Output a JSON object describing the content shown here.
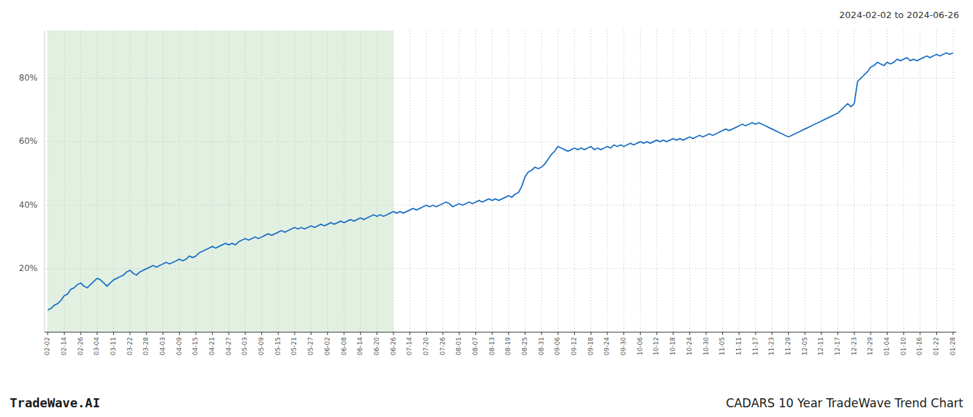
{
  "chart_data": {
    "type": "line",
    "title": "CADARS 10 Year TradeWave Trend Chart",
    "subtitle": "2024-02-02 to 2024-06-26",
    "annotations": [
      "TradeWave.AI"
    ],
    "color": "#1a6fc4",
    "grid": true,
    "ylim": [
      0,
      95
    ],
    "yticks": [
      {
        "value": 20,
        "label": "20%"
      },
      {
        "value": 40,
        "label": "40%"
      },
      {
        "value": 60,
        "label": "60%"
      },
      {
        "value": 80,
        "label": "80%"
      }
    ],
    "shaded_region": {
      "from": "02-02",
      "to": "06-26",
      "color": "#d6ead6"
    },
    "categories": [
      "02-02",
      null,
      null,
      null,
      null,
      "02-14",
      null,
      null,
      null,
      null,
      "02-26",
      null,
      null,
      null,
      null,
      "03-04",
      null,
      null,
      null,
      null,
      "03-11",
      null,
      null,
      null,
      null,
      "03-22",
      null,
      null,
      null,
      null,
      "03-28",
      null,
      null,
      null,
      null,
      "04-03",
      null,
      null,
      null,
      null,
      "04-09",
      null,
      null,
      null,
      null,
      "04-15",
      null,
      null,
      null,
      null,
      "04-21",
      null,
      null,
      null,
      null,
      "04-27",
      null,
      null,
      null,
      null,
      "05-03",
      null,
      null,
      null,
      null,
      "05-09",
      null,
      null,
      null,
      null,
      "05-15",
      null,
      null,
      null,
      null,
      "05-21",
      null,
      null,
      null,
      null,
      "05-27",
      null,
      null,
      null,
      null,
      "06-02",
      null,
      null,
      null,
      null,
      "06-08",
      null,
      null,
      null,
      null,
      "06-14",
      null,
      null,
      null,
      null,
      "06-20",
      null,
      null,
      null,
      null,
      "06-26",
      null,
      null,
      null,
      null,
      "07-14",
      null,
      null,
      null,
      null,
      "07-20",
      null,
      null,
      null,
      null,
      "07-26",
      null,
      null,
      null,
      null,
      "08-01",
      null,
      null,
      null,
      null,
      "08-07",
      null,
      null,
      null,
      null,
      "08-13",
      null,
      null,
      null,
      null,
      "08-19",
      null,
      null,
      null,
      null,
      "08-25",
      null,
      null,
      null,
      null,
      "08-31",
      null,
      null,
      null,
      null,
      "09-06",
      null,
      null,
      null,
      null,
      "09-12",
      null,
      null,
      null,
      null,
      "09-18",
      null,
      null,
      null,
      null,
      "09-24",
      null,
      null,
      null,
      null,
      "09-30",
      null,
      null,
      null,
      null,
      "10-06",
      null,
      null,
      null,
      null,
      "10-12",
      null,
      null,
      null,
      null,
      "10-18",
      null,
      null,
      null,
      null,
      "10-24",
      null,
      null,
      null,
      null,
      "10-30",
      null,
      null,
      null,
      null,
      "11-05",
      null,
      null,
      null,
      null,
      "11-11",
      null,
      null,
      null,
      null,
      "11-17",
      null,
      null,
      null,
      null,
      "11-23",
      null,
      null,
      null,
      null,
      "11-29",
      null,
      null,
      null,
      null,
      "12-05",
      null,
      null,
      null,
      null,
      "12-11",
      null,
      null,
      null,
      null,
      "12-17",
      null,
      null,
      null,
      null,
      "12-23",
      null,
      null,
      null,
      null,
      "12-29",
      null,
      null,
      null,
      null,
      "01-04",
      null,
      null,
      null,
      null,
      "01-10",
      null,
      null,
      null,
      null,
      "01-16",
      null,
      null,
      null,
      null,
      "01-22",
      null,
      null,
      null,
      null,
      "01-28"
    ],
    "values": [
      7.0,
      7.5,
      8.5,
      9.0,
      10.0,
      11.5,
      12.0,
      13.5,
      14.0,
      15.0,
      15.5,
      14.5,
      14.0,
      15.0,
      16.0,
      17.0,
      16.5,
      15.5,
      14.5,
      15.5,
      16.5,
      17.0,
      17.5,
      18.0,
      19.0,
      19.5,
      18.5,
      18.0,
      19.0,
      19.5,
      20.0,
      20.5,
      21.0,
      20.5,
      21.0,
      21.5,
      22.0,
      21.5,
      22.0,
      22.5,
      23.0,
      22.5,
      23.0,
      24.0,
      23.5,
      24.0,
      25.0,
      25.5,
      26.0,
      26.5,
      27.0,
      26.5,
      27.0,
      27.5,
      28.0,
      27.5,
      28.0,
      27.5,
      28.5,
      29.0,
      29.5,
      29.0,
      29.5,
      30.0,
      29.5,
      30.0,
      30.5,
      31.0,
      30.5,
      31.0,
      31.5,
      32.0,
      31.5,
      32.0,
      32.5,
      33.0,
      32.5,
      33.0,
      32.5,
      33.0,
      33.5,
      33.0,
      33.5,
      34.0,
      33.5,
      34.0,
      34.5,
      34.0,
      34.5,
      35.0,
      34.5,
      35.0,
      35.5,
      35.0,
      35.5,
      36.0,
      35.5,
      36.0,
      36.5,
      37.0,
      36.5,
      37.0,
      36.5,
      37.0,
      37.5,
      38.0,
      37.5,
      38.0,
      37.5,
      38.0,
      38.5,
      39.0,
      38.5,
      39.0,
      39.5,
      40.0,
      39.5,
      40.0,
      39.5,
      40.0,
      40.5,
      41.0,
      40.5,
      39.5,
      40.0,
      40.5,
      40.0,
      40.5,
      41.0,
      40.5,
      41.0,
      41.5,
      41.0,
      41.5,
      42.0,
      41.5,
      42.0,
      41.5,
      42.0,
      42.5,
      43.0,
      42.5,
      43.5,
      44.0,
      46.0,
      49.0,
      50.5,
      51.0,
      52.0,
      51.5,
      52.0,
      53.0,
      54.5,
      56.0,
      57.0,
      58.5,
      58.0,
      57.5,
      57.0,
      57.5,
      58.0,
      57.5,
      58.0,
      57.5,
      58.0,
      58.5,
      57.5,
      58.0,
      57.5,
      58.0,
      58.5,
      58.0,
      59.0,
      58.5,
      59.0,
      58.5,
      59.0,
      59.5,
      59.0,
      59.5,
      60.0,
      59.5,
      60.0,
      59.5,
      60.0,
      60.5,
      60.0,
      60.5,
      60.0,
      60.5,
      61.0,
      60.5,
      61.0,
      60.5,
      61.0,
      61.5,
      61.0,
      61.5,
      62.0,
      61.5,
      62.0,
      62.5,
      62.0,
      62.5,
      63.0,
      63.5,
      64.0,
      63.5,
      64.0,
      64.5,
      65.0,
      65.5,
      65.0,
      65.5,
      66.0,
      65.5,
      66.0,
      65.5,
      65.0,
      64.5,
      64.0,
      63.5,
      63.0,
      62.5,
      62.0,
      61.5,
      62.0,
      62.5,
      63.0,
      63.5,
      64.0,
      64.5,
      65.0,
      65.5,
      66.0,
      66.5,
      67.0,
      67.5,
      68.0,
      68.5,
      69.0,
      70.0,
      71.0,
      72.0,
      71.0,
      72.0,
      79.0,
      80.0,
      81.0,
      82.0,
      83.5,
      84.0,
      85.0,
      84.5,
      84.0,
      85.0,
      84.5,
      85.0,
      86.0,
      85.5,
      86.0,
      86.5,
      85.5,
      86.0,
      85.5,
      86.0,
      86.5,
      87.0,
      86.5,
      87.0,
      87.5,
      87.0,
      87.5,
      88.0,
      87.5,
      88.0
    ]
  }
}
